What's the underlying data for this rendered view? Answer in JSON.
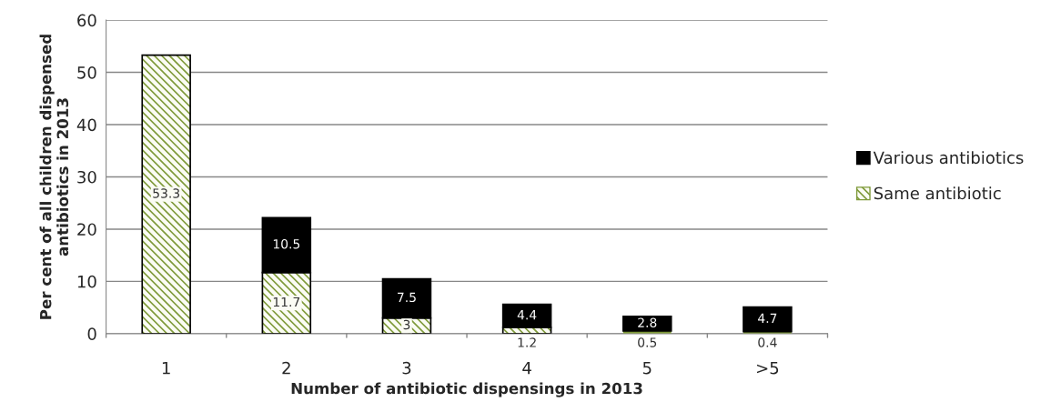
{
  "chart_data": {
    "type": "bar",
    "stacked": true,
    "xlabel": "Number of antibiotic dispensings in 2013",
    "ylabel": "Per cent of all children dispensed\nantibiotics in 2013",
    "categories": [
      "1",
      "2",
      "3",
      "4",
      "5",
      ">5"
    ],
    "series": [
      {
        "name": "Same antibiotic",
        "color": "#7f9a3a",
        "values": [
          53.3,
          11.7,
          3,
          1.2,
          0.5,
          0.4
        ]
      },
      {
        "name": "Various antibiotics",
        "color": "#000000",
        "values": [
          null,
          10.5,
          7.5,
          4.4,
          2.8,
          4.7
        ]
      }
    ],
    "ylim": [
      0,
      60
    ],
    "yticks": [
      0,
      10,
      20,
      30,
      40,
      50,
      60
    ],
    "grid": "y",
    "legend": "right",
    "data_labels": true
  }
}
